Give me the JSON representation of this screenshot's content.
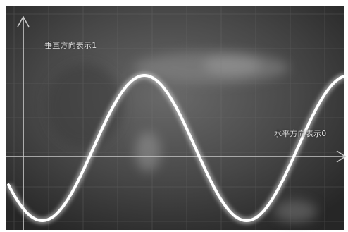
{
  "labels": {
    "vertical": "垂直方向表示1",
    "horizontal": "水平方向表示0"
  },
  "colors": {
    "screen_dark": "#2a2a2a",
    "screen_mid": "#4a4a4a",
    "grid": "#7a7a7a",
    "axis": "#c8c8c8",
    "trace": "#ffffff",
    "trace_glow": "#e6e6e6"
  }
}
